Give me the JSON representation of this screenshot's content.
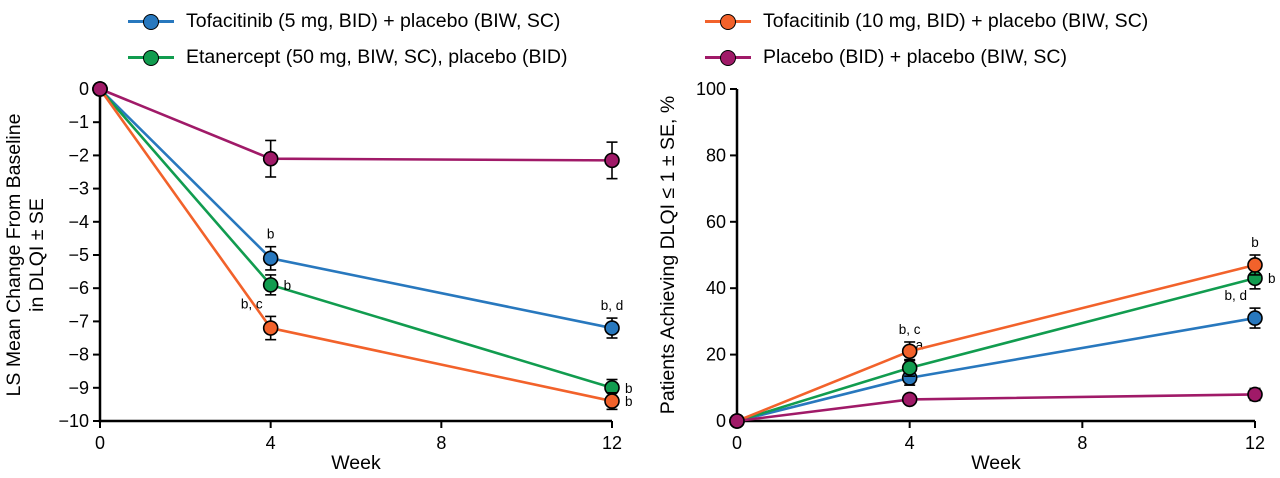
{
  "legend": {
    "items": [
      {
        "label": "Tofacitinib (5 mg, BID) + placebo (BIW, SC)",
        "color": "#2878BE"
      },
      {
        "label": "Tofacitinib (10 mg, BID) + placebo (BIW, SC)",
        "color": "#F2622B"
      },
      {
        "label": "Etanercept (50 mg, BIW, SC), placebo (BID)",
        "color": "#119C4F"
      },
      {
        "label": "Placebo (BID) + placebo (BIW, SC)",
        "color": "#A01A68"
      }
    ]
  },
  "chart_data": [
    {
      "type": "line",
      "title": "",
      "xlabel": "Week",
      "ylabel_lines": [
        "LS Mean Change From Baseline",
        "in DLQI ± SE"
      ],
      "xlim": [
        0,
        12
      ],
      "ylim": [
        -10,
        0
      ],
      "grid": false,
      "xticks": [
        {
          "v": 0,
          "label": "0"
        },
        {
          "v": 4,
          "label": "4"
        },
        {
          "v": 8,
          "label": "8"
        },
        {
          "v": 12,
          "label": "12"
        }
      ],
      "yticks": [
        {
          "v": 0,
          "label": "0"
        },
        {
          "v": -1,
          "label": "−1"
        },
        {
          "v": -2,
          "label": "−2"
        },
        {
          "v": -3,
          "label": "−3"
        },
        {
          "v": -4,
          "label": "−4"
        },
        {
          "v": -5,
          "label": "−5"
        },
        {
          "v": -6,
          "label": "−6"
        },
        {
          "v": -7,
          "label": "−7"
        },
        {
          "v": -8,
          "label": "−8"
        },
        {
          "v": -9,
          "label": "−9"
        },
        {
          "v": -10,
          "label": "−10"
        }
      ],
      "series": [
        {
          "name": "Tofacitinib (5 mg, BID) + placebo (BIW, SC)",
          "color": "#2878BE",
          "points": [
            {
              "x": 0,
              "y": 0
            },
            {
              "x": 4,
              "y": -5.1,
              "se": 0.35,
              "label": "b",
              "label_pos": "above"
            },
            {
              "x": 12,
              "y": -7.2,
              "se": 0.3,
              "label": "b, d",
              "label_pos": "above"
            }
          ]
        },
        {
          "name": "Etanercept (50 mg, BIW, SC), placebo (BID)",
          "color": "#119C4F",
          "points": [
            {
              "x": 0,
              "y": 0
            },
            {
              "x": 4,
              "y": -5.9,
              "se": 0.3,
              "label": "b",
              "label_pos": "right"
            },
            {
              "x": 12,
              "y": -9.0,
              "se": 0.25,
              "label": "b",
              "label_pos": "right"
            }
          ]
        },
        {
          "name": "Tofacitinib (10 mg, BID) + placebo (BIW, SC)",
          "color": "#F2622B",
          "points": [
            {
              "x": 0,
              "y": 0
            },
            {
              "x": 4,
              "y": -7.2,
              "se": 0.35,
              "label": "b, c",
              "label_pos": "above-left"
            },
            {
              "x": 12,
              "y": -9.4,
              "se": 0.25,
              "label": "b",
              "label_pos": "right"
            }
          ]
        },
        {
          "name": "Placebo (BID) + placebo (BIW, SC)",
          "color": "#A01A68",
          "points": [
            {
              "x": 0,
              "y": 0
            },
            {
              "x": 4,
              "y": -2.1,
              "se": 0.55
            },
            {
              "x": 12,
              "y": -2.15,
              "se": 0.55
            }
          ]
        }
      ]
    },
    {
      "type": "line",
      "title": "",
      "xlabel": "Week",
      "ylabel_lines": [
        "Patients Achieving DLQI ≤ 1 ± SE, %"
      ],
      "xlim": [
        0,
        12
      ],
      "ylim": [
        0,
        100
      ],
      "grid": false,
      "xticks": [
        {
          "v": 0,
          "label": "0"
        },
        {
          "v": 4,
          "label": "4"
        },
        {
          "v": 8,
          "label": "8"
        },
        {
          "v": 12,
          "label": "12"
        }
      ],
      "yticks": [
        {
          "v": 0,
          "label": "0"
        },
        {
          "v": 20,
          "label": "20"
        },
        {
          "v": 40,
          "label": "40"
        },
        {
          "v": 60,
          "label": "60"
        },
        {
          "v": 80,
          "label": "80"
        },
        {
          "v": 100,
          "label": "100"
        }
      ],
      "series": [
        {
          "name": "Tofacitinib (5 mg, BID) + placebo (BIW, SC)",
          "color": "#2878BE",
          "points": [
            {
              "x": 0,
              "y": 0
            },
            {
              "x": 4,
              "y": 13,
              "se": 2.2
            },
            {
              "x": 12,
              "y": 31,
              "se": 3.0,
              "label": "b, d",
              "label_pos": "above-left"
            }
          ]
        },
        {
          "name": "Etanercept (50 mg, BIW, SC), placebo (BID)",
          "color": "#119C4F",
          "points": [
            {
              "x": 0,
              "y": 0
            },
            {
              "x": 4,
              "y": 16,
              "se": 2.5,
              "label": "a",
              "label_pos": "above-right"
            },
            {
              "x": 12,
              "y": 43,
              "se": 3.2,
              "label": "b",
              "label_pos": "right"
            }
          ]
        },
        {
          "name": "Tofacitinib (10 mg, BID) + placebo (BIW, SC)",
          "color": "#F2622B",
          "points": [
            {
              "x": 0,
              "y": 0
            },
            {
              "x": 4,
              "y": 21,
              "se": 2.8,
              "label": "b, c",
              "label_pos": "above"
            },
            {
              "x": 12,
              "y": 47,
              "se": 3.0,
              "label": "b",
              "label_pos": "above"
            }
          ]
        },
        {
          "name": "Placebo (BID) + placebo (BIW, SC)",
          "color": "#A01A68",
          "points": [
            {
              "x": 0,
              "y": 0
            },
            {
              "x": 4,
              "y": 6.5,
              "se": 1.3
            },
            {
              "x": 12,
              "y": 8,
              "se": 1.8
            }
          ]
        }
      ]
    }
  ]
}
